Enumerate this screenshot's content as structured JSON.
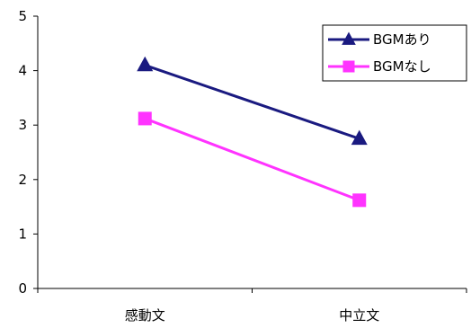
{
  "chart_data": {
    "type": "line",
    "categories": [
      "感動文",
      "中立文"
    ],
    "series": [
      {
        "name": "BGMあり",
        "values": [
          4.1,
          2.75
        ],
        "color": "#1a1a80",
        "marker": "triangle"
      },
      {
        "name": "BGMなし",
        "values": [
          3.12,
          1.62
        ],
        "color": "#ff33ff",
        "marker": "square"
      }
    ],
    "ylim": [
      0,
      5
    ],
    "yticks": [
      0,
      1,
      2,
      3,
      4,
      5
    ],
    "grid": false,
    "legend": "top-right",
    "title": "",
    "xlabel": "",
    "ylabel": ""
  }
}
